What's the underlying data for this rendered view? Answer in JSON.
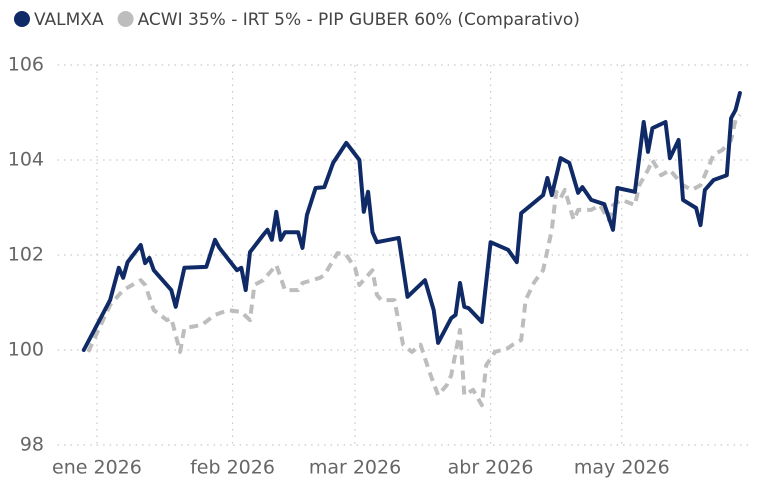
{
  "chart_data": {
    "type": "line",
    "series": [
      {
        "name": "VALMXA",
        "color": "#0f2a66",
        "line_style": "solid",
        "x": [
          -3,
          3,
          5,
          6,
          7,
          10,
          11,
          12,
          13,
          17,
          18,
          20,
          25,
          27,
          28,
          32,
          33,
          34,
          35,
          38,
          39,
          40,
          41,
          42,
          43,
          46,
          47,
          48,
          50,
          52,
          54,
          57,
          60,
          61,
          62,
          63,
          64,
          69,
          71,
          75,
          77,
          78,
          81,
          82,
          83,
          84,
          85,
          88,
          90,
          94,
          96,
          97,
          99,
          102,
          103,
          104,
          106,
          108,
          110,
          111,
          113,
          116,
          118,
          119,
          123,
          125,
          126,
          127,
          130,
          131,
          133,
          134,
          137,
          138,
          139,
          141,
          144,
          145,
          146,
          147
        ],
        "values": [
          100.0,
          101.05,
          101.73,
          101.52,
          101.85,
          102.21,
          101.83,
          101.94,
          101.68,
          101.26,
          100.91,
          101.73,
          101.75,
          102.32,
          102.15,
          101.68,
          101.73,
          101.26,
          102.06,
          102.42,
          102.53,
          102.32,
          102.91,
          102.32,
          102.48,
          102.48,
          102.15,
          102.84,
          103.41,
          103.43,
          103.94,
          104.36,
          104.0,
          102.91,
          103.33,
          102.48,
          102.27,
          102.36,
          101.12,
          101.47,
          100.84,
          100.15,
          100.67,
          100.74,
          101.41,
          100.91,
          100.88,
          100.59,
          102.27,
          102.11,
          101.85,
          102.88,
          103.03,
          103.26,
          103.62,
          103.26,
          104.04,
          103.94,
          103.31,
          103.43,
          103.16,
          103.07,
          102.53,
          103.41,
          103.33,
          104.8,
          104.17,
          104.67,
          104.8,
          104.04,
          104.42,
          103.16,
          102.99,
          102.63,
          103.37,
          103.58,
          103.68,
          104.88,
          105.05,
          105.41
        ]
      },
      {
        "name": "ACWI 35% - IRT 5% - PIP GUBER 60% (Comparativo)",
        "color": "#bdbdbd",
        "line_style": "dashed",
        "x": [
          -2,
          3,
          6,
          10,
          11,
          13,
          16,
          17,
          19,
          20,
          24,
          27,
          30,
          33,
          35,
          36,
          38,
          41,
          43,
          46,
          47,
          51,
          52,
          55,
          57,
          59,
          60,
          63,
          64,
          65,
          68,
          70,
          72,
          74,
          76,
          78,
          80,
          81,
          83,
          84,
          86,
          88,
          89,
          91,
          94,
          95,
          97,
          98,
          100,
          102,
          104,
          105,
          106,
          107,
          109,
          110,
          113,
          115,
          117,
          118,
          120,
          123,
          124,
          126,
          127,
          129,
          131,
          134,
          136,
          138,
          141,
          143,
          145,
          146,
          147
        ],
        "values": [
          99.96,
          100.95,
          101.26,
          101.47,
          101.37,
          100.84,
          100.63,
          100.67,
          99.96,
          100.46,
          100.53,
          100.74,
          100.84,
          100.8,
          100.63,
          101.37,
          101.47,
          101.79,
          101.26,
          101.26,
          101.41,
          101.52,
          101.58,
          102.04,
          102.0,
          101.73,
          101.37,
          101.68,
          101.16,
          101.05,
          101.05,
          100.11,
          99.96,
          100.11,
          99.54,
          99.05,
          99.26,
          99.47,
          100.42,
          99.05,
          99.16,
          98.84,
          99.68,
          99.96,
          100.04,
          100.11,
          100.21,
          101.05,
          101.43,
          101.68,
          102.53,
          103.33,
          103.2,
          103.37,
          102.74,
          102.95,
          102.95,
          103.05,
          102.74,
          103.05,
          103.16,
          103.05,
          103.47,
          103.79,
          104.0,
          103.68,
          103.79,
          103.47,
          103.37,
          103.47,
          104.11,
          104.21,
          104.42,
          104.84,
          104.95
        ]
      }
    ],
    "xlim": [
      -9,
      150
    ],
    "xticks": [
      {
        "value": 0,
        "label": "ene 2026"
      },
      {
        "value": 31,
        "label": "feb 2026"
      },
      {
        "value": 59,
        "label": "mar 2026"
      },
      {
        "value": 90,
        "label": "abr 2026"
      },
      {
        "value": 120,
        "label": "may 2026"
      }
    ],
    "ylim": [
      98,
      106
    ],
    "yticks": [
      98,
      100,
      102,
      104,
      106
    ],
    "grid": true,
    "legend": "top-left"
  }
}
